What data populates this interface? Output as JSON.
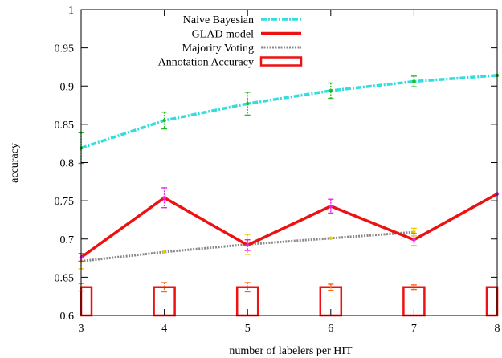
{
  "chart_data": {
    "type": "line",
    "title": "",
    "xlabel": "number of labelers per HIT",
    "ylabel": "accuracy",
    "xlim": [
      3,
      8
    ],
    "ylim": [
      0.6,
      1.0
    ],
    "xticks": [
      3,
      4,
      5,
      6,
      7,
      8
    ],
    "yticks": [
      0.6,
      0.65,
      0.7,
      0.75,
      0.8,
      0.85,
      0.9,
      0.95,
      1.0
    ],
    "ytick_labels": [
      "0.6",
      "0.65",
      "0.7",
      "0.75",
      "0.8",
      "0.85",
      "0.9",
      "0.95",
      "1"
    ],
    "grid": false,
    "legend_position": "top-center",
    "series": [
      {
        "name": "Naive Bayesian",
        "kind": "line",
        "style": "dash-dot",
        "color": "#33dddd",
        "errorbar_color": "#22bb22",
        "x": [
          3,
          4,
          5,
          6,
          7,
          8
        ],
        "values": [
          0.819,
          0.855,
          0.877,
          0.894,
          0.906,
          0.914
        ],
        "errors": [
          0.02,
          0.011,
          0.015,
          0.01,
          0.007,
          0.0
        ]
      },
      {
        "name": "GLAD model",
        "kind": "line",
        "style": "solid",
        "color": "#ee1111",
        "errorbar_color": "#ee22ee",
        "x": [
          3,
          4,
          5,
          6,
          7,
          8
        ],
        "values": [
          0.676,
          0.754,
          0.692,
          0.743,
          0.699,
          0.759
        ],
        "errors": [
          0.005,
          0.013,
          0.007,
          0.009,
          0.008,
          0.0
        ]
      },
      {
        "name": "Majority Voting",
        "kind": "line",
        "style": "dotted",
        "color": "#888888",
        "errorbar_color": "#eecc00",
        "x": [
          3,
          4,
          5,
          6,
          7
        ],
        "values": [
          0.671,
          0.683,
          0.693,
          0.701,
          0.709
        ],
        "errors": [
          0.01,
          0.0,
          0.013,
          0.0,
          0.005
        ]
      },
      {
        "name": "Annotation Accuracy",
        "kind": "bar",
        "color": "#ee1111",
        "errorbar_color": "#ff6600",
        "x": [
          3,
          4,
          5,
          6,
          7,
          8
        ],
        "values": [
          0.637,
          0.637,
          0.637,
          0.637,
          0.637,
          0.637
        ],
        "errors": [
          0.005,
          0.006,
          0.006,
          0.004,
          0.003,
          0.0
        ]
      }
    ]
  }
}
